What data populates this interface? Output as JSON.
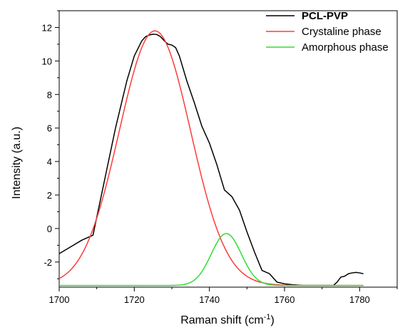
{
  "chart_data": {
    "type": "line",
    "xlabel": "Raman shift (cm",
    "xlabel_sup": "-1",
    "xlabel_close": ")",
    "ylabel": "Intensity (a.u.)",
    "xlim": [
      1700,
      1790
    ],
    "ylim": [
      -3.5,
      13
    ],
    "xticks": [
      1700,
      1720,
      1740,
      1760,
      1780
    ],
    "yticks": [
      -2,
      0,
      2,
      4,
      6,
      8,
      10,
      12
    ],
    "legend_position": "top-right",
    "grid": false,
    "series": [
      {
        "name": "PCL-PVP",
        "color": "#000000",
        "x": [
          1700,
          1703,
          1706,
          1709,
          1712,
          1715,
          1718,
          1720,
          1722,
          1723,
          1724,
          1725,
          1726,
          1727,
          1728,
          1729,
          1730,
          1731,
          1732,
          1734,
          1736,
          1738,
          1740,
          1742,
          1744,
          1746,
          1748,
          1750,
          1752,
          1754,
          1756,
          1758,
          1760,
          1762,
          1765,
          1768,
          1771,
          1773,
          1774,
          1775,
          1776,
          1777,
          1778,
          1779,
          1780,
          1781
        ],
        "y": [
          -1.5,
          -1.1,
          -0.7,
          -0.4,
          2.8,
          6.0,
          8.8,
          10.3,
          11.2,
          11.45,
          11.55,
          11.6,
          11.58,
          11.45,
          11.2,
          11.0,
          10.95,
          10.8,
          10.3,
          8.8,
          7.5,
          6.1,
          5.1,
          3.8,
          2.3,
          1.9,
          1.1,
          -0.2,
          -1.4,
          -2.5,
          -2.7,
          -3.2,
          -3.3,
          -3.35,
          -3.4,
          -3.4,
          -3.4,
          -3.4,
          -3.2,
          -2.9,
          -2.85,
          -2.7,
          -2.65,
          -2.62,
          -2.65,
          -2.7
        ]
      },
      {
        "name": "Crystaline phase",
        "color": "#ff3b3b",
        "model": "gaussian",
        "center": 1725.5,
        "amplitude": 15.2,
        "sigma": 9.5,
        "baseline": -3.4,
        "x_range": [
          1700,
          1781
        ]
      },
      {
        "name": "Amorphous phase",
        "color": "#33dd33",
        "model": "gaussian",
        "center": 1744.5,
        "amplitude": 3.1,
        "sigma": 4.0,
        "baseline": -3.4,
        "x_range": [
          1700,
          1781
        ]
      }
    ]
  }
}
